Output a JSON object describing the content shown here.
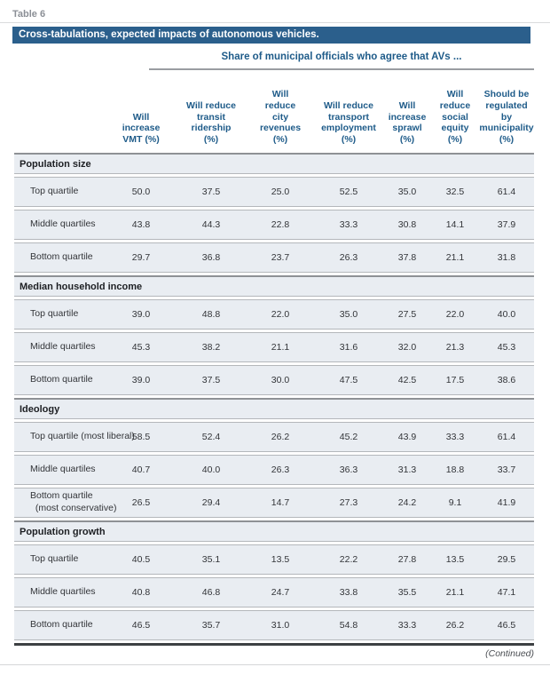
{
  "page": {
    "table_label": "Table 6",
    "caption": "Cross-tabulations, expected impacts of autonomous vehicles.",
    "spanner": "Share of municipal officials who agree that AVs ...",
    "continued": "(Continued)"
  },
  "colors": {
    "banner_background": "#2b5f8c",
    "heading_blue": "#1e5b89",
    "row_band_background": "#e9edf2",
    "separator_light": "#b4b7bb",
    "separator_dark": "#8e9195",
    "bottom_bar": "#3d4043"
  },
  "columns": [
    "Will\nincrease\nVMT (%)",
    "Will reduce\ntransit\nridership\n(%)",
    "Will\nreduce\ncity\nrevenues\n(%)",
    "Will reduce\ntransport\nemployment\n(%)",
    "Will\nincrease\nsprawl\n(%)",
    "Will\nreduce\nsocial\nequity\n(%)",
    "Should be\nregulated\nby\nmunicipality\n(%)"
  ],
  "groups": [
    {
      "header": "Population size",
      "rows": [
        {
          "label": "Top quartile",
          "values": [
            "50.0",
            "37.5",
            "25.0",
            "52.5",
            "35.0",
            "32.5",
            "61.4"
          ]
        },
        {
          "label": "Middle quartiles",
          "values": [
            "43.8",
            "44.3",
            "22.8",
            "33.3",
            "30.8",
            "14.1",
            "37.9"
          ]
        },
        {
          "label": "Bottom quartile",
          "values": [
            "29.7",
            "36.8",
            "23.7",
            "26.3",
            "37.8",
            "21.1",
            "31.8"
          ]
        }
      ]
    },
    {
      "header": "Median household income",
      "rows": [
        {
          "label": "Top quartile",
          "values": [
            "39.0",
            "48.8",
            "22.0",
            "35.0",
            "27.5",
            "22.0",
            "40.0"
          ]
        },
        {
          "label": "Middle quartiles",
          "values": [
            "45.3",
            "38.2",
            "21.1",
            "31.6",
            "32.0",
            "21.3",
            "45.3"
          ]
        },
        {
          "label": "Bottom quartile",
          "values": [
            "39.0",
            "37.5",
            "30.0",
            "47.5",
            "42.5",
            "17.5",
            "38.6"
          ]
        }
      ]
    },
    {
      "header": "Ideology",
      "rows": [
        {
          "label": "Top quartile (most liberal)",
          "values": [
            "58.5",
            "52.4",
            "26.2",
            "45.2",
            "43.9",
            "33.3",
            "61.4"
          ]
        },
        {
          "label": "Middle quartiles",
          "values": [
            "40.7",
            "40.0",
            "26.3",
            "36.3",
            "31.3",
            "18.8",
            "33.7"
          ]
        },
        {
          "label": "Bottom quartile\n  (most conservative)",
          "values": [
            "26.5",
            "29.4",
            "14.7",
            "27.3",
            "24.2",
            "9.1",
            "41.9"
          ]
        }
      ]
    },
    {
      "header": "Population growth",
      "rows": [
        {
          "label": "Top quartile",
          "values": [
            "40.5",
            "35.1",
            "13.5",
            "22.2",
            "27.8",
            "13.5",
            "29.5"
          ]
        },
        {
          "label": "Middle quartiles",
          "values": [
            "40.8",
            "46.8",
            "24.7",
            "33.8",
            "35.5",
            "21.1",
            "47.1"
          ]
        },
        {
          "label": "Bottom quartile",
          "values": [
            "46.5",
            "35.7",
            "31.0",
            "54.8",
            "33.3",
            "26.2",
            "46.5"
          ]
        }
      ]
    }
  ]
}
